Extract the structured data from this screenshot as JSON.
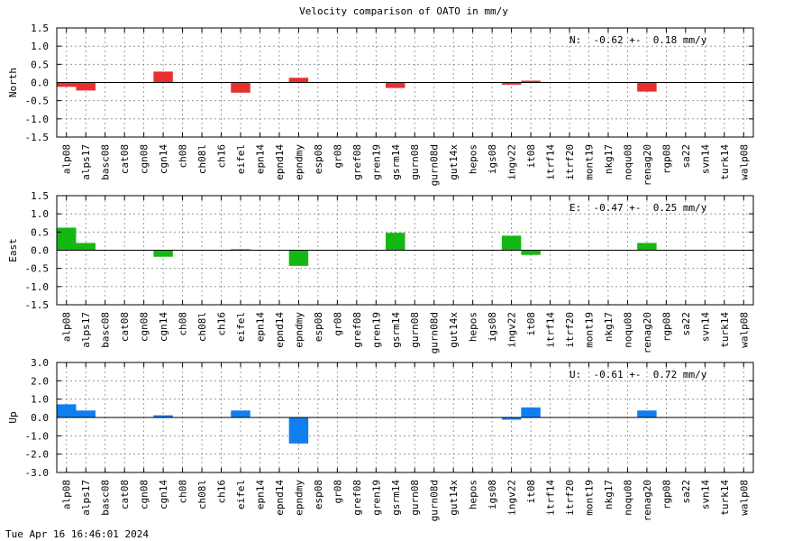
{
  "title": "Velocity comparison of OATO in mm/y",
  "timestamp": "Tue Apr 16 16:46:01 2024",
  "colors": {
    "north": "#e8302f",
    "east": "#14b814",
    "up": "#0f7fef"
  },
  "chart_data": [
    {
      "type": "bar",
      "ylabel": "North",
      "ylim": [
        -1.5,
        1.5
      ],
      "yticks": [
        1.5,
        1.0,
        0.5,
        0.0,
        -0.5,
        -1.0,
        -1.5
      ],
      "yticklabels": [
        "1.5",
        "1.0",
        "0.5",
        "0.0",
        "-0.5",
        "-1.0",
        "-1.5"
      ],
      "grid": true,
      "annotation": "N:  -0.62 +-  0.18 mm/y",
      "categories": [
        "alp08",
        "alps17",
        "basc08",
        "cat08",
        "cgn08",
        "cgn14",
        "ch08",
        "ch08l",
        "ch16",
        "eifel",
        "epn14",
        "epnd14",
        "epndmy",
        "esp08",
        "gr08",
        "gref08",
        "gren19",
        "gsrm14",
        "gurn08",
        "gurn08d",
        "gut14x",
        "hepos",
        "igs08",
        "ingv22",
        "it08",
        "itrf14",
        "itrf20",
        "mont19",
        "nkg17",
        "noqu08",
        "renag20",
        "rgp08",
        "sa22",
        "svn14",
        "turk14",
        "walp08"
      ],
      "values": [
        -0.12,
        -0.22,
        0,
        0,
        0,
        0.3,
        0,
        0,
        0,
        -0.28,
        0,
        0,
        0.13,
        0,
        0,
        0,
        0,
        -0.15,
        0,
        0,
        0,
        0,
        0,
        -0.06,
        0.05,
        0,
        0,
        0,
        0,
        0,
        -0.25,
        0,
        0,
        0,
        0,
        0
      ]
    },
    {
      "type": "bar",
      "ylabel": "East",
      "ylim": [
        -1.5,
        1.5
      ],
      "yticks": [
        1.5,
        1.0,
        0.5,
        0.0,
        -0.5,
        -1.0,
        -1.5
      ],
      "yticklabels": [
        "1.5",
        "1.0",
        "0.5",
        "0.0",
        "-0.5",
        "-1.0",
        "-1.5"
      ],
      "grid": true,
      "annotation": "E:  -0.47 +-  0.25 mm/y",
      "categories": [
        "alp08",
        "alps17",
        "basc08",
        "cat08",
        "cgn08",
        "cgn14",
        "ch08",
        "ch08l",
        "ch16",
        "eifel",
        "epn14",
        "epnd14",
        "epndmy",
        "esp08",
        "gr08",
        "gref08",
        "gren19",
        "gsrm14",
        "gurn08",
        "gurn08d",
        "gut14x",
        "hepos",
        "igs08",
        "ingv22",
        "it08",
        "itrf14",
        "itrf20",
        "mont19",
        "nkg17",
        "noqu08",
        "renag20",
        "rgp08",
        "sa22",
        "svn14",
        "turk14",
        "walp08"
      ],
      "values": [
        0.62,
        0.2,
        0,
        0,
        0,
        -0.18,
        0,
        0,
        0,
        0.03,
        0,
        0,
        -0.43,
        0,
        0,
        0,
        0,
        0.48,
        0,
        0,
        0,
        0,
        0,
        0.4,
        -0.13,
        0,
        0,
        0,
        0,
        0,
        0.2,
        0,
        0,
        0,
        0,
        0
      ]
    },
    {
      "type": "bar",
      "ylabel": "Up",
      "ylim": [
        -3.0,
        3.0
      ],
      "yticks": [
        3.0,
        2.0,
        1.0,
        0.0,
        -1.0,
        -2.0,
        -3.0
      ],
      "yticklabels": [
        "3.0",
        "2.0",
        "1.0",
        "0.0",
        "-1.0",
        "-2.0",
        "-3.0"
      ],
      "grid": true,
      "annotation": "U:  -0.61 +-  0.72 mm/y",
      "categories": [
        "alp08",
        "alps17",
        "basc08",
        "cat08",
        "cgn08",
        "cgn14",
        "ch08",
        "ch08l",
        "ch16",
        "eifel",
        "epn14",
        "epnd14",
        "epndmy",
        "esp08",
        "gr08",
        "gref08",
        "gren19",
        "gsrm14",
        "gurn08",
        "gurn08d",
        "gut14x",
        "hepos",
        "igs08",
        "ingv22",
        "it08",
        "itrf14",
        "itrf20",
        "mont19",
        "nkg17",
        "noqu08",
        "renag20",
        "rgp08",
        "sa22",
        "svn14",
        "turk14",
        "walp08"
      ],
      "values": [
        0.72,
        0.38,
        0,
        0,
        0,
        0.12,
        0,
        0,
        0,
        0.38,
        0,
        0,
        -1.42,
        0,
        0,
        0,
        0,
        0,
        0,
        0,
        0,
        0,
        0,
        -0.12,
        0.55,
        0,
        0,
        0,
        0,
        0,
        0.38,
        0,
        0,
        0,
        0,
        0
      ]
    }
  ]
}
